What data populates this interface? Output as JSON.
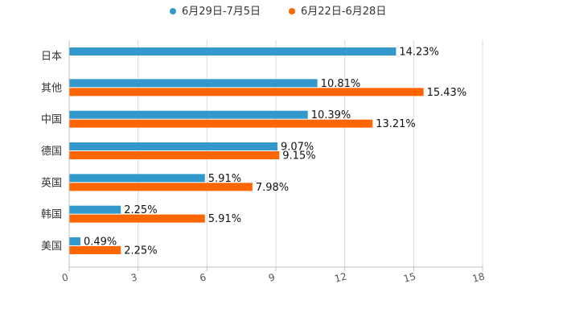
{
  "chart_data": {
    "type": "bar",
    "orientation": "horizontal",
    "title": "",
    "xlabel": "",
    "ylabel": "",
    "xlim": [
      0,
      18
    ],
    "ticks": [
      0,
      3,
      6,
      9,
      12,
      15,
      18
    ],
    "tick_labels": [
      "0",
      "3",
      "6",
      "9",
      "12",
      "15",
      "18"
    ],
    "grid": true,
    "legend_position": "top-center",
    "categories": [
      "日本",
      "其他",
      "中国",
      "德国",
      "英国",
      "韩国",
      "美国"
    ],
    "series": [
      {
        "name": "6月29日-7月5日",
        "color": "#3399cc",
        "values": [
          14.23,
          10.81,
          10.39,
          9.07,
          5.91,
          2.25,
          0.49
        ],
        "labels": [
          "14.23%",
          "10.81%",
          "10.39%",
          "9.07%",
          "5.91%",
          "2.25%",
          "0.49%"
        ]
      },
      {
        "name": "6月22日-6月28日",
        "color": "#ff6600",
        "values": [
          null,
          15.43,
          13.21,
          9.15,
          7.98,
          5.91,
          2.25
        ],
        "labels": [
          null,
          "15.43%",
          "13.21%",
          "9.15%",
          "7.98%",
          "5.91%",
          "2.25%"
        ]
      }
    ]
  }
}
